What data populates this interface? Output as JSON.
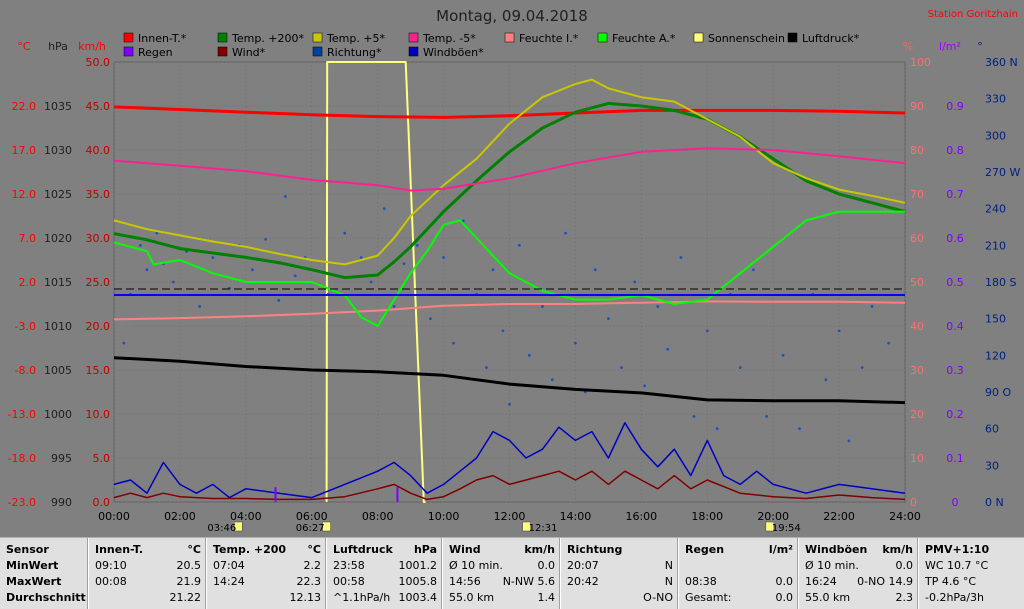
{
  "title": "Montag, 09.04.2018",
  "station": "Station Goritzhain",
  "legend": [
    {
      "label": "Innen-T.*",
      "color": "#ff0000"
    },
    {
      "label": "Temp. +200*",
      "color": "#008000"
    },
    {
      "label": "Temp. +5*",
      "color": "#c8c800"
    },
    {
      "label": "Temp. -5*",
      "color": "#ff2090"
    },
    {
      "label": "Feuchte I.*",
      "color": "#ff8080"
    },
    {
      "label": "Feuchte A.*",
      "color": "#00ff00"
    },
    {
      "label": "Sonnenschein",
      "color": "#ffff80"
    },
    {
      "label": "Luftdruck*",
      "color": "#000000"
    },
    {
      "label": "Regen",
      "color": "#8000ff"
    },
    {
      "label": "Wind*",
      "color": "#800000"
    },
    {
      "label": "Richtung*",
      "color": "#0040a0"
    },
    {
      "label": "Windböen*",
      "color": "#0000c0"
    }
  ],
  "axes": {
    "left_units": [
      "°C",
      "hPa",
      "km/h"
    ],
    "right_units": [
      "%",
      "l/m²",
      "°"
    ],
    "temp_ticks": [
      "22.0",
      "17.0",
      "12.0",
      "7.0",
      "2.0",
      "-3.0",
      "-8.0",
      "-13.0",
      "-18.0",
      "-23.0"
    ],
    "hpa_ticks": [
      "1035",
      "1030",
      "1025",
      "1020",
      "1015",
      "1010",
      "1005",
      "1000",
      "995",
      "990"
    ],
    "kmh_ticks": [
      "50.0",
      "45.0",
      "40.0",
      "35.0",
      "30.0",
      "25.0",
      "20.0",
      "15.0",
      "10.0",
      "5.0",
      "0.0"
    ],
    "pct_ticks": [
      "100",
      "90",
      "80",
      "70",
      "60",
      "50",
      "40",
      "30",
      "20",
      "10",
      "0"
    ],
    "rain_ticks": [
      "0.9",
      "0.8",
      "0.7",
      "0.6",
      "0.5",
      "0.4",
      "0.3",
      "0.2",
      "0.1",
      "0"
    ],
    "dir_ticks": [
      "360 N",
      "330",
      "300",
      "270 W",
      "240",
      "210",
      "180 S",
      "150",
      "120",
      "90 O",
      "60",
      "30",
      "0 N"
    ],
    "time_ticks": [
      "00:00",
      "02:00",
      "04:00",
      "06:00",
      "08:00",
      "10:00",
      "12:00",
      "14:00",
      "16:00",
      "18:00",
      "20:00",
      "22:00",
      "24:00"
    ]
  },
  "events": [
    {
      "label": "03:46",
      "hour": 3.77
    },
    {
      "label": "06:27",
      "hour": 6.45
    },
    {
      "label": "12:31",
      "hour": 12.52
    },
    {
      "label": "19:54",
      "hour": 19.9
    }
  ],
  "chart_data": {
    "type": "line",
    "title": "Montag, 09.04.2018",
    "x_unit": "hour",
    "xlim": [
      0,
      24
    ],
    "series": [
      {
        "name": "Innen-T.*",
        "axis": "°C",
        "ylim": [
          -23,
          27
        ],
        "color": "#ff0000",
        "width": 3,
        "x": [
          0,
          2,
          4,
          6,
          8,
          10,
          12,
          14,
          16,
          18,
          20,
          22,
          24
        ],
        "y": [
          21.9,
          21.6,
          21.3,
          21.0,
          20.8,
          20.7,
          20.9,
          21.2,
          21.5,
          21.5,
          21.5,
          21.4,
          21.2
        ]
      },
      {
        "name": "Temp. +200*",
        "axis": "°C",
        "ylim": [
          -23,
          27
        ],
        "color": "#008000",
        "width": 3,
        "x": [
          0,
          1,
          2,
          3,
          4,
          5,
          6,
          7,
          8,
          8.5,
          9,
          10,
          11,
          12,
          13,
          14,
          15,
          16,
          17,
          18,
          19,
          20,
          21,
          22,
          23,
          24
        ],
        "y": [
          7.5,
          6.8,
          5.8,
          5.3,
          4.8,
          4.2,
          3.4,
          2.5,
          2.8,
          4.3,
          6.0,
          10.0,
          13.5,
          16.8,
          19.5,
          21.3,
          22.3,
          22.0,
          21.5,
          20.5,
          18.5,
          16.0,
          13.5,
          12.0,
          11.0,
          10.0
        ]
      },
      {
        "name": "Temp. +5*",
        "axis": "°C",
        "ylim": [
          -23,
          27
        ],
        "color": "#c8c800",
        "width": 2,
        "x": [
          0,
          1,
          2,
          3,
          4,
          5,
          6,
          7,
          8,
          8.5,
          9,
          10,
          11,
          12,
          13,
          14,
          14.5,
          15,
          16,
          17,
          18,
          19,
          20,
          21,
          22,
          23,
          24
        ],
        "y": [
          9.0,
          8.0,
          7.3,
          6.6,
          6.0,
          5.2,
          4.5,
          4.0,
          5.0,
          7.0,
          9.5,
          13.0,
          16.0,
          20.0,
          23.0,
          24.5,
          25.0,
          24.0,
          23.0,
          22.5,
          20.5,
          18.5,
          15.5,
          13.8,
          12.5,
          11.8,
          11.0
        ]
      },
      {
        "name": "Temp. -5*",
        "axis": "°C",
        "ylim": [
          -23,
          27
        ],
        "color": "#ff2090",
        "width": 2,
        "x": [
          0,
          2,
          4,
          6,
          8,
          9,
          10,
          12,
          14,
          16,
          18,
          20,
          22,
          24
        ],
        "y": [
          15.8,
          15.2,
          14.6,
          13.6,
          13.0,
          12.4,
          12.6,
          13.8,
          15.5,
          16.8,
          17.2,
          17.0,
          16.3,
          15.5
        ]
      },
      {
        "name": "Feuchte I.*",
        "axis": "%",
        "ylim": [
          0,
          100
        ],
        "color": "#ff8080",
        "width": 2,
        "x": [
          0,
          2,
          4,
          6,
          8,
          10,
          12,
          14,
          16,
          18,
          20,
          22,
          24
        ],
        "y": [
          41.5,
          41.8,
          42.2,
          42.8,
          43.5,
          44.6,
          45.0,
          45.0,
          45.3,
          45.6,
          45.5,
          45.5,
          45.3
        ]
      },
      {
        "name": "Feuchte A.*",
        "axis": "%",
        "ylim": [
          0,
          100
        ],
        "color": "#00ff00",
        "width": 2,
        "x": [
          0,
          1,
          1.2,
          2,
          3,
          4,
          5,
          6,
          7,
          7.5,
          8,
          8.5,
          9,
          9.5,
          10,
          10.5,
          11,
          12,
          13,
          14,
          15,
          16,
          17,
          18,
          19,
          20,
          21,
          22,
          23,
          24
        ],
        "y": [
          59,
          57,
          54,
          55,
          52,
          50,
          50,
          50,
          47,
          42,
          40,
          46,
          52,
          57,
          63,
          64,
          60,
          52,
          48,
          46,
          46,
          47,
          45,
          46,
          52,
          58,
          64,
          66,
          66,
          66
        ]
      },
      {
        "name": "Luftdruck*",
        "axis": "hPa",
        "ylim": [
          990,
          1040
        ],
        "color": "#000000",
        "width": 3,
        "x": [
          0,
          2,
          4,
          6,
          8,
          10,
          12,
          14,
          16,
          18,
          20,
          22,
          24
        ],
        "y": [
          1006.4,
          1006.0,
          1005.4,
          1005.0,
          1004.8,
          1004.4,
          1003.4,
          1002.8,
          1002.4,
          1001.6,
          1001.5,
          1001.5,
          1001.3
        ]
      },
      {
        "name": "Sonnenschein",
        "axis": "%",
        "ylim": [
          0,
          100
        ],
        "color": "#ffff80",
        "width": 2,
        "x": [
          6.45,
          6.47,
          8.85,
          9.4,
          9.45
        ],
        "y": [
          0,
          100,
          100,
          0,
          0
        ]
      },
      {
        "name": "Windböen*",
        "axis": "km/h",
        "ylim": [
          0,
          50
        ],
        "color": "#0000c0",
        "width": 1.5,
        "x": [
          0,
          0.5,
          1,
          1.5,
          2,
          2.5,
          3,
          3.5,
          4,
          5,
          6,
          7,
          8,
          8.5,
          9,
          9.5,
          10,
          10.5,
          11,
          11.5,
          12,
          12.5,
          13,
          13.5,
          14,
          14.5,
          15,
          15.5,
          16,
          16.5,
          17,
          17.5,
          18,
          18.5,
          19,
          19.5,
          20,
          21,
          22,
          23,
          24
        ],
        "y": [
          2,
          2.5,
          1,
          4.5,
          2,
          1,
          2,
          0.5,
          1.5,
          1,
          0.5,
          2,
          3.5,
          4.5,
          3,
          1,
          2,
          3.5,
          5,
          8,
          7,
          5,
          6,
          8.5,
          7,
          8,
          5,
          9,
          6,
          4,
          6,
          3,
          7,
          3,
          2,
          3.5,
          2,
          1,
          2,
          1.5,
          1
        ]
      },
      {
        "name": "Wind*",
        "axis": "km/h",
        "ylim": [
          0,
          50
        ],
        "color": "#800000",
        "width": 1.5,
        "x": [
          0,
          0.5,
          1,
          1.5,
          2,
          3,
          4,
          5,
          6,
          7,
          8,
          8.5,
          9,
          9.5,
          10,
          10.5,
          11,
          11.5,
          12,
          12.5,
          13,
          13.5,
          14,
          14.5,
          15,
          15.5,
          16,
          16.5,
          17,
          17.5,
          18,
          19,
          20,
          21,
          22,
          23,
          24
        ],
        "y": [
          0.5,
          1,
          0.5,
          1,
          0.6,
          0.4,
          0.4,
          0.3,
          0.3,
          0.6,
          1.5,
          2,
          1,
          0.3,
          0.6,
          1.5,
          2.5,
          3,
          2,
          2.5,
          3,
          3.5,
          2.5,
          3.5,
          2,
          3.5,
          2.5,
          1.5,
          3,
          1.5,
          2.5,
          1,
          0.6,
          0.4,
          0.8,
          0.5,
          0.3
        ]
      },
      {
        "name": "Richtung*",
        "axis": "°",
        "ylim": [
          0,
          360
        ],
        "color": "#2050c0",
        "type": "scatter",
        "x": [
          0.3,
          0.5,
          0.8,
          1.0,
          1.3,
          1.5,
          1.8,
          2.2,
          2.6,
          3.0,
          3.5,
          3.8,
          4.2,
          4.6,
          5.0,
          5.2,
          5.5,
          5.8,
          6.5,
          7.0,
          7.5,
          7.8,
          8.2,
          8.5,
          8.8,
          9.2,
          9.6,
          10.0,
          10.3,
          10.6,
          11.0,
          11.3,
          11.5,
          11.8,
          12.0,
          12.3,
          12.6,
          13.0,
          13.3,
          13.7,
          14.0,
          14.3,
          14.6,
          15.0,
          15.4,
          15.8,
          16.1,
          16.5,
          16.8,
          17.2,
          17.6,
          18.0,
          18.3,
          18.7,
          19.0,
          19.4,
          19.8,
          20.3,
          20.8,
          21.2,
          21.6,
          22.0,
          22.3,
          22.7,
          23.0,
          23.5
        ],
        "y": [
          130,
          170,
          210,
          190,
          220,
          195,
          180,
          205,
          160,
          200,
          175,
          210,
          190,
          215,
          165,
          250,
          185,
          200,
          170,
          220,
          200,
          180,
          240,
          160,
          195,
          210,
          150,
          200,
          130,
          230,
          170,
          110,
          190,
          140,
          80,
          210,
          120,
          160,
          100,
          220,
          130,
          90,
          190,
          150,
          110,
          180,
          95,
          160,
          125,
          200,
          70,
          140,
          60,
          170,
          110,
          190,
          70,
          120,
          60,
          170,
          100,
          140,
          50,
          110,
          160,
          130
        ]
      },
      {
        "name": "Regen",
        "axis": "l/m²",
        "ylim": [
          0,
          1
        ],
        "color": "#8000ff",
        "type": "bar",
        "x": [
          4.9,
          8.6
        ],
        "y": [
          0.02,
          0.02
        ]
      }
    ]
  },
  "stats": {
    "labels": [
      "Sensor",
      "MinWert",
      "MaxWert",
      "Durchschnitt"
    ],
    "columns": [
      {
        "name": "Innen-T.",
        "unit": "°C",
        "min_t": "09:10",
        "min": "20.5",
        "max_t": "00:08",
        "max": "21.9",
        "avg_t": "",
        "avg": "21.22"
      },
      {
        "name": "Temp. +200",
        "unit": "°C",
        "min_t": "07:04",
        "min": "2.2",
        "max_t": "14:24",
        "max": "22.3",
        "avg_t": "",
        "avg": "12.13"
      },
      {
        "name": "Luftdruck",
        "unit": "hPa",
        "min_t": "23:58",
        "min": "1001.2",
        "max_t": "00:58",
        "max": "1005.8",
        "avg_t": "^1.1hPa/h",
        "avg": "1003.4"
      },
      {
        "name": "Wind",
        "unit": "km/h",
        "min_t": "Ø 10 min.",
        "min": "0.0",
        "max_t": "14:56",
        "max": "N-NW 5.6",
        "avg_t": "55.0 km",
        "avg": "1.4"
      },
      {
        "name": "Richtung",
        "unit": "",
        "min_t": "20:07",
        "min": "N",
        "max_t": "20:42",
        "max": "N",
        "avg_t": "",
        "avg": "O-NO"
      },
      {
        "name": "Regen",
        "unit": "l/m²",
        "min_t": "",
        "min": "",
        "max_t": "08:38",
        "max": "0.0",
        "avg_t": "Gesamt:",
        "avg": "0.0"
      },
      {
        "name": "Windböen",
        "unit": "km/h",
        "min_t": "Ø 10 min.",
        "min": "0.0",
        "max_t": "16:24",
        "max": "0-NO 14.9",
        "avg_t": "55.0 km",
        "avg": "2.3"
      },
      {
        "name": "PMV+1:10",
        "unit": "",
        "min_t": "WC 10.7 °C",
        "min": "",
        "max_t": "TP 4.6 °C",
        "max": "",
        "avg_t": "-0.2hPa/3h",
        "avg": ""
      }
    ]
  }
}
